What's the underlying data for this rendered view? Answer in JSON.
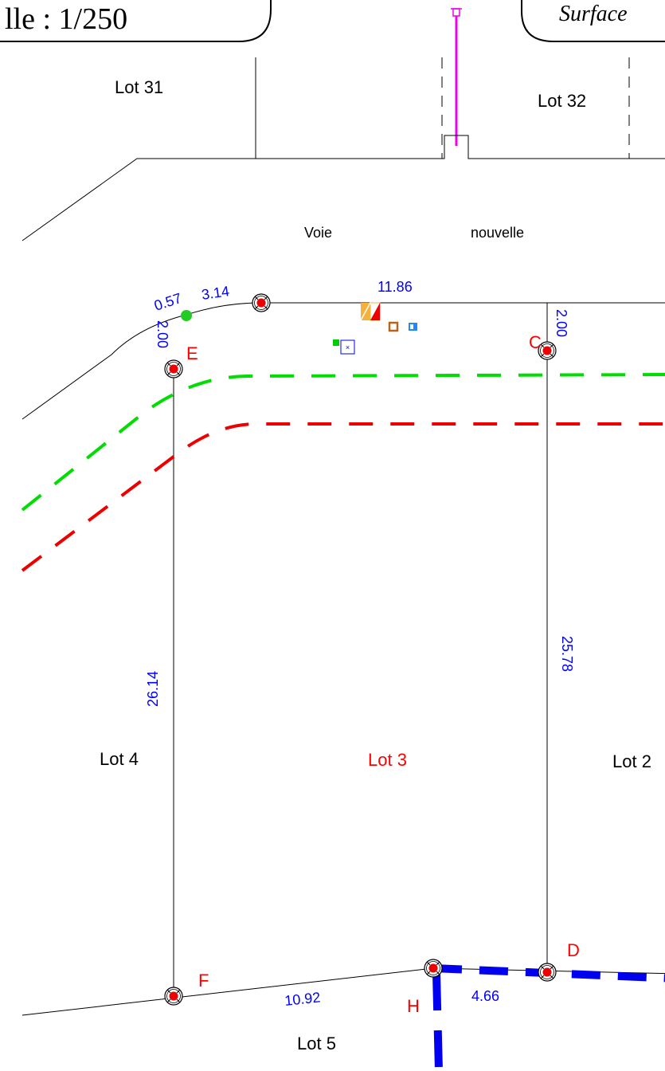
{
  "header": {
    "scale_label": "lle : 1/250",
    "surface_label": "Surface"
  },
  "lots": {
    "lot31": "Lot 31",
    "lot32": "Lot 32",
    "lot4": "Lot 4",
    "lot3": "Lot 3",
    "lot2": "Lot 2",
    "lot5": "Lot 5"
  },
  "road": {
    "word1": "Voie",
    "word2": "nouvelle"
  },
  "points": {
    "C": "C",
    "D": "D",
    "E": "E",
    "F": "F",
    "H": "H"
  },
  "dimensions": {
    "d_057": "0.57",
    "d_314": "3.14",
    "d_1186": "11.86",
    "d_200_left": "2.00",
    "d_200_right": "2.00",
    "d_2614": "26.14",
    "d_2578": "25.78",
    "d_1092": "10.92",
    "d_466": "4.66"
  },
  "colors": {
    "linework": "#000000",
    "dimension_text": "#0000ff",
    "point_text": "#ff0000",
    "lot3_text": "#ff0000",
    "green_network": "#00dd00",
    "red_network": "#ee0000",
    "blue_network": "#0000ee",
    "magenta_pole": "#ee00ee"
  },
  "icons": [
    "survey-marker-icon",
    "green-dot-icon",
    "hydrant-icon",
    "meter-box-icon",
    "manhole-icon",
    "utility-box-icon",
    "street-lamp-icon"
  ]
}
